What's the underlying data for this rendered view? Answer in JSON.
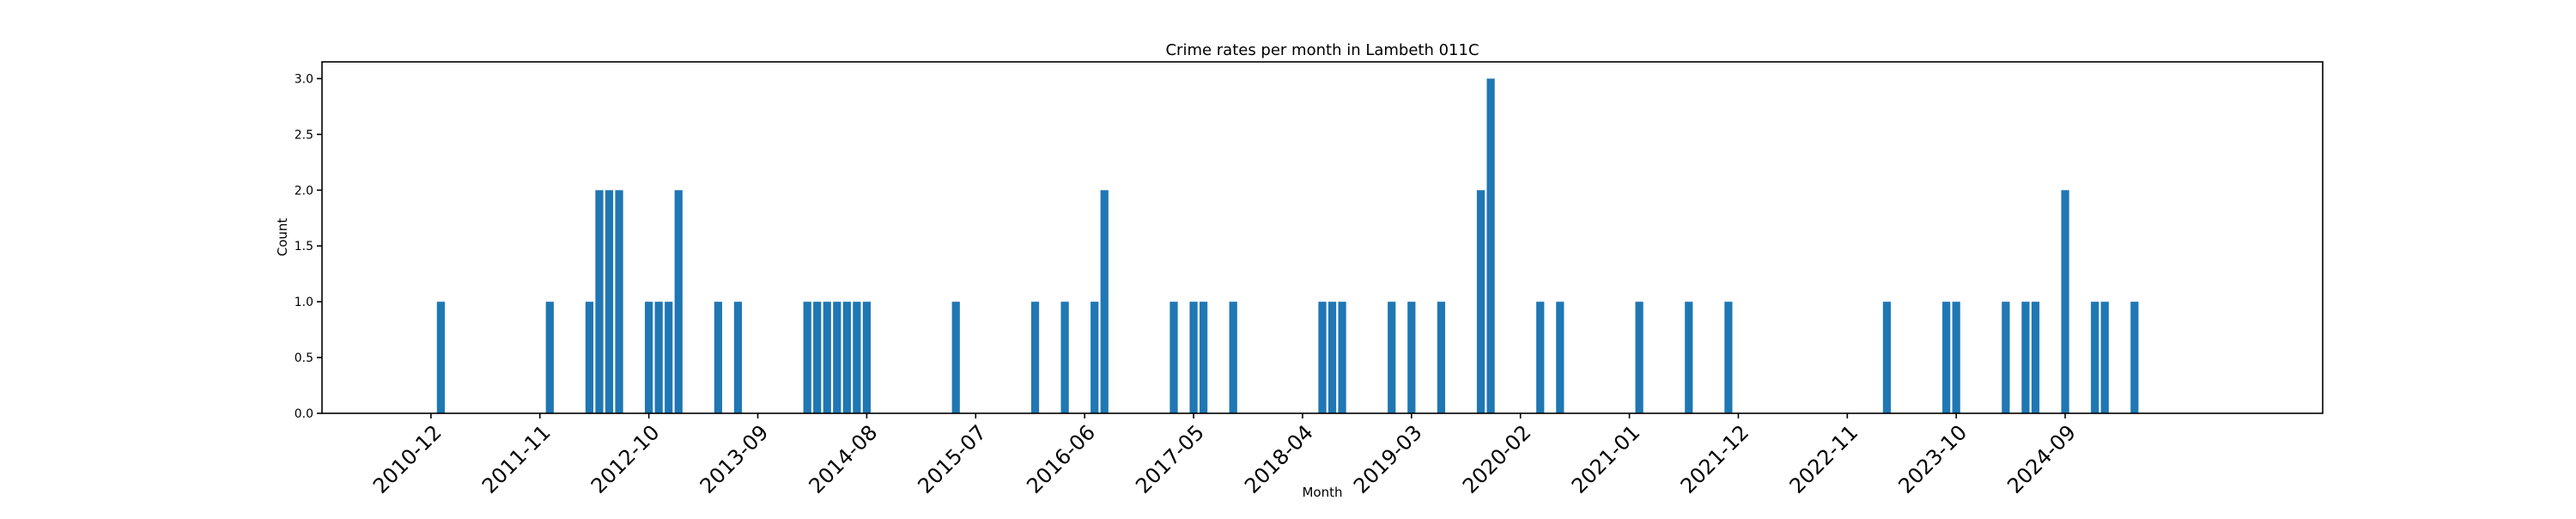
{
  "chart_data": {
    "type": "bar",
    "title": "Crime rates per month in Lambeth 011C",
    "xlabel": "Month",
    "ylabel": "Count",
    "ylim": [
      0,
      3.15
    ],
    "xlim": [
      "2010-01",
      "2026-11"
    ],
    "yticks": [
      "0.0",
      "0.5",
      "1.0",
      "1.5",
      "2.0",
      "2.5",
      "3.0"
    ],
    "xticks": [
      "2010-12",
      "2011-11",
      "2012-10",
      "2013-09",
      "2014-08",
      "2015-07",
      "2016-06",
      "2017-05",
      "2018-04",
      "2019-03",
      "2020-02",
      "2021-01",
      "2021-12",
      "2022-11",
      "2023-10",
      "2024-09"
    ],
    "grid": false,
    "color": "#1f77b4",
    "x": [
      "2011-01",
      "2011-12",
      "2012-04",
      "2012-05",
      "2012-06",
      "2012-07",
      "2012-10",
      "2012-11",
      "2012-12",
      "2013-01",
      "2013-05",
      "2013-07",
      "2014-02",
      "2014-03",
      "2014-04",
      "2014-05",
      "2014-06",
      "2014-07",
      "2014-08",
      "2015-05",
      "2016-01",
      "2016-04",
      "2016-07",
      "2016-08",
      "2017-03",
      "2017-05",
      "2017-06",
      "2017-09",
      "2018-06",
      "2018-07",
      "2018-08",
      "2019-01",
      "2019-03",
      "2019-06",
      "2019-10",
      "2019-11",
      "2020-04",
      "2020-06",
      "2021-02",
      "2021-07",
      "2021-11",
      "2023-03",
      "2023-09",
      "2023-10",
      "2024-03",
      "2024-05",
      "2024-06",
      "2024-09",
      "2024-12",
      "2025-01",
      "2025-04"
    ],
    "values": [
      1,
      1,
      1,
      2,
      2,
      2,
      1,
      1,
      1,
      2,
      1,
      1,
      1,
      1,
      1,
      1,
      1,
      1,
      1,
      1,
      1,
      1,
      1,
      2,
      1,
      1,
      1,
      1,
      1,
      1,
      1,
      1,
      1,
      1,
      2,
      3,
      1,
      1,
      1,
      1,
      1,
      1,
      1,
      1,
      1,
      1,
      1,
      2,
      1,
      1,
      1
    ]
  }
}
